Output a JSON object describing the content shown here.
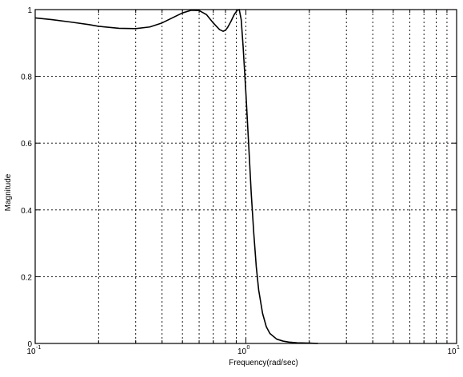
{
  "chart_data": {
    "type": "line",
    "title": "",
    "xlabel": "Frequency(rad/sec)",
    "ylabel": "Magnitude",
    "xscale": "log",
    "xlim": [
      0.1,
      10
    ],
    "ylim": [
      0,
      1
    ],
    "grid": true,
    "x_ticks": [
      {
        "base": "10",
        "exp": "-1"
      },
      {
        "base": "10",
        "exp": "0"
      },
      {
        "base": "10",
        "exp": "1"
      }
    ],
    "y_ticks": [
      "0",
      "0.2",
      "0.4",
      "0.6",
      "0.8",
      "1"
    ],
    "series": [
      {
        "x": [
          0.1,
          0.12,
          0.15,
          0.18,
          0.2,
          0.25,
          0.3,
          0.35,
          0.4,
          0.45,
          0.5,
          0.55,
          0.6,
          0.65,
          0.7,
          0.75,
          0.78,
          0.8,
          0.82,
          0.85,
          0.88,
          0.91,
          0.93,
          0.95,
          0.97,
          1.0,
          1.03,
          1.06,
          1.09,
          1.12,
          1.15,
          1.2,
          1.25,
          1.3,
          1.4,
          1.5,
          1.6,
          1.75,
          2.0,
          2.2
        ],
        "y": [
          0.975,
          0.97,
          0.962,
          0.955,
          0.95,
          0.944,
          0.943,
          0.948,
          0.96,
          0.976,
          0.99,
          0.998,
          0.997,
          0.985,
          0.96,
          0.94,
          0.935,
          0.938,
          0.947,
          0.965,
          0.985,
          0.998,
          1.0,
          0.97,
          0.89,
          0.75,
          0.6,
          0.45,
          0.33,
          0.23,
          0.16,
          0.09,
          0.05,
          0.03,
          0.013,
          0.007,
          0.004,
          0.002,
          0.001,
          0.0
        ]
      }
    ]
  }
}
